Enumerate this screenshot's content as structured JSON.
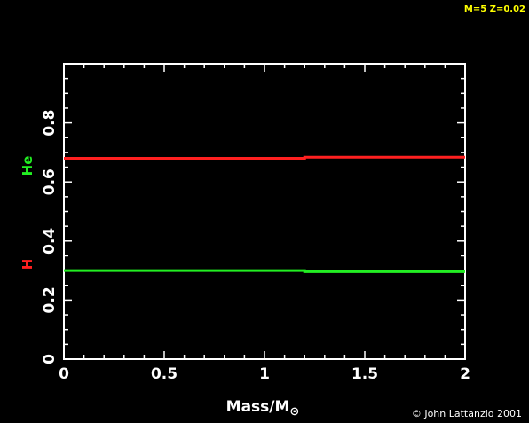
{
  "header": {
    "model_label": "M=5 Z=0.02"
  },
  "credit": "© John Lattanzio 2001",
  "colors": {
    "background": "#000000",
    "axis": "#ffffff",
    "hydrogen": "#ff2020",
    "helium": "#22ee22",
    "model_label": "#ffff00"
  },
  "chart_data": {
    "type": "line",
    "xlabel": "Mass/M",
    "xlabel_subscript": "⊙",
    "ylabel_series": [
      "H",
      "He"
    ],
    "xlim": [
      0,
      2
    ],
    "ylim": [
      0,
      1
    ],
    "x_ticks": [
      "0",
      "0.5",
      "1",
      "1.5",
      "2"
    ],
    "y_ticks": [
      "0",
      "0.2",
      "0.4",
      "0.6",
      "0.8"
    ],
    "series": [
      {
        "name": "H",
        "color": "#ff2020",
        "x": [
          0,
          1.2,
          1.2,
          2
        ],
        "values": [
          0.68,
          0.68,
          0.684,
          0.684
        ]
      },
      {
        "name": "He",
        "color": "#22ee22",
        "x": [
          0,
          1.2,
          1.2,
          2
        ],
        "values": [
          0.3,
          0.3,
          0.296,
          0.296
        ]
      }
    ]
  }
}
